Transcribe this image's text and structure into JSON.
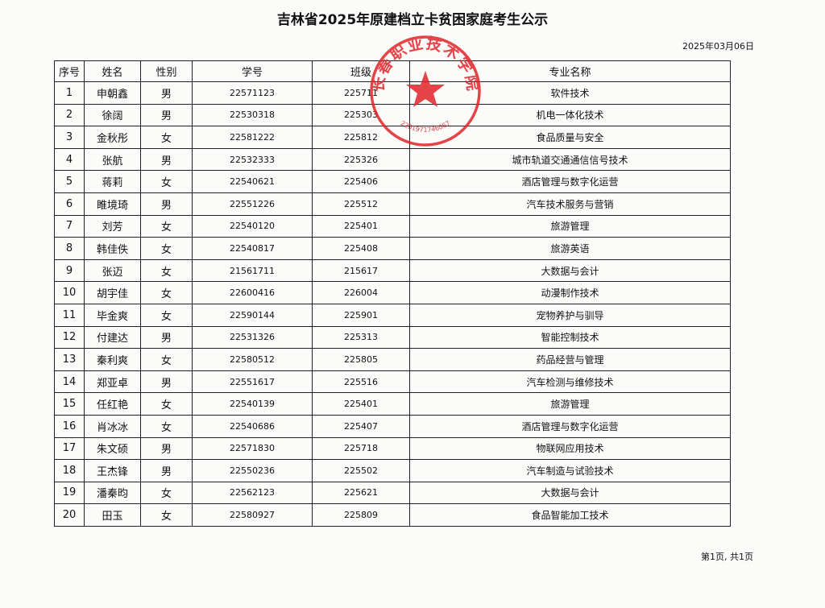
{
  "document": {
    "title": "吉林省2025年原建档立卡贫困家庭考生公示",
    "date": "2025年03月06日",
    "footer": "第1页, 共1页"
  },
  "seal": {
    "text": "长春职业技术学院",
    "number": "2201971746067",
    "color": "#e0232a",
    "icon": "star-icon"
  },
  "table": {
    "headers": [
      "序号",
      "姓名",
      "性别",
      "学号",
      "班级",
      "专业名称"
    ],
    "rows": [
      [
        "1",
        "申朝鑫",
        "男",
        "22571123",
        "225711",
        "软件技术"
      ],
      [
        "2",
        "徐阔",
        "男",
        "22530318",
        "225303",
        "机电一体化技术"
      ],
      [
        "3",
        "金秋彤",
        "女",
        "22581222",
        "225812",
        "食品质量与安全"
      ],
      [
        "4",
        "张航",
        "男",
        "22532333",
        "225326",
        "城市轨道交通通信信号技术"
      ],
      [
        "5",
        "蒋莉",
        "女",
        "22540621",
        "225406",
        "酒店管理与数字化运营"
      ],
      [
        "6",
        "睢境琦",
        "男",
        "22551226",
        "225512",
        "汽车技术服务与营销"
      ],
      [
        "7",
        "刘芳",
        "女",
        "22540120",
        "225401",
        "旅游管理"
      ],
      [
        "8",
        "韩佳佚",
        "女",
        "22540817",
        "225408",
        "旅游英语"
      ],
      [
        "9",
        "张迈",
        "女",
        "21561711",
        "215617",
        "大数据与会计"
      ],
      [
        "10",
        "胡宇佳",
        "女",
        "22600416",
        "226004",
        "动漫制作技术"
      ],
      [
        "11",
        "毕金爽",
        "女",
        "22590144",
        "225901",
        "宠物养护与驯导"
      ],
      [
        "12",
        "付建达",
        "男",
        "22531326",
        "225313",
        "智能控制技术"
      ],
      [
        "13",
        "秦利爽",
        "女",
        "22580512",
        "225805",
        "药品经营与管理"
      ],
      [
        "14",
        "郑亚卓",
        "男",
        "22551617",
        "225516",
        "汽车检测与维修技术"
      ],
      [
        "15",
        "任红艳",
        "女",
        "22540139",
        "225401",
        "旅游管理"
      ],
      [
        "16",
        "肖冰冰",
        "女",
        "22540686",
        "225407",
        "酒店管理与数字化运营"
      ],
      [
        "17",
        "朱文硕",
        "男",
        "22571830",
        "225718",
        "物联网应用技术"
      ],
      [
        "18",
        "王杰锋",
        "男",
        "22550236",
        "225502",
        "汽车制造与试验技术"
      ],
      [
        "19",
        "潘秦昀",
        "女",
        "22562123",
        "225621",
        "大数据与会计"
      ],
      [
        "20",
        "田玉",
        "女",
        "22580927",
        "225809",
        "食品智能加工技术"
      ]
    ]
  }
}
